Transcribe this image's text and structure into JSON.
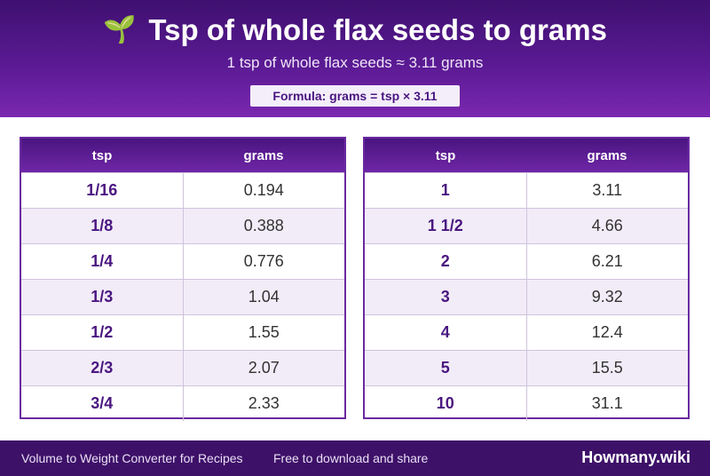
{
  "header": {
    "icon": "sprout-icon",
    "title": "Tsp of whole flax seeds to grams",
    "subtitle": "1 tsp of whole flax seeds ≈ 3.11 grams",
    "formula": "Formula: grams = tsp × 3.11"
  },
  "tables": {
    "left": {
      "col1": "tsp",
      "col2": "grams",
      "rows": [
        {
          "tsp": "1/16",
          "grams": "0.194"
        },
        {
          "tsp": "1/8",
          "grams": "0.388"
        },
        {
          "tsp": "1/4",
          "grams": "0.776"
        },
        {
          "tsp": "1/3",
          "grams": "1.04"
        },
        {
          "tsp": "1/2",
          "grams": "1.55"
        },
        {
          "tsp": "2/3",
          "grams": "2.07"
        },
        {
          "tsp": "3/4",
          "grams": "2.33"
        }
      ]
    },
    "right": {
      "col1": "tsp",
      "col2": "grams",
      "rows": [
        {
          "tsp": "1",
          "grams": "3.11"
        },
        {
          "tsp": "1 1/2",
          "grams": "4.66"
        },
        {
          "tsp": "2",
          "grams": "6.21"
        },
        {
          "tsp": "3",
          "grams": "9.32"
        },
        {
          "tsp": "4",
          "grams": "12.4"
        },
        {
          "tsp": "5",
          "grams": "15.5"
        },
        {
          "tsp": "10",
          "grams": "31.1"
        }
      ]
    }
  },
  "footer": {
    "left_text": "Volume to Weight Converter for Recipes",
    "middle_text": "Free to download and share",
    "brand": "Howmany.wiki"
  },
  "colors": {
    "header_bg": "#5a1a93",
    "accent": "#4a1680",
    "footer_bg": "#3d1168"
  }
}
